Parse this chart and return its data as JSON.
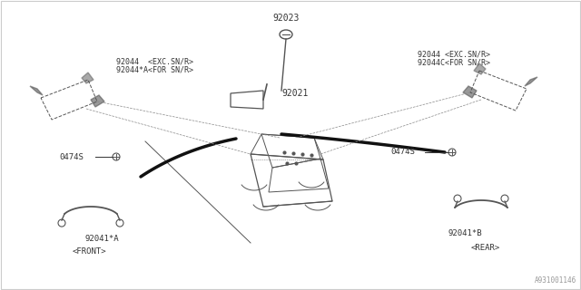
{
  "bg_color": "#ffffff",
  "line_color": "#333333",
  "text_color": "#333333",
  "diagram_id": "A931001146",
  "labels": {
    "front": "<FRONT>",
    "rear": "<REAR>",
    "part_92023": "92023",
    "part_92021": "92021",
    "part_92044_left_1": "92044  <EXC.SN/R>",
    "part_92044_left_2": "92044*A<FOR SN/R>",
    "part_0474S_left": "0474S",
    "part_92044_right_1": "92044 <EXC.SN/R>",
    "part_92044_right_2": "92044C<FOR SN/R>",
    "part_0474S_right": "0474S",
    "part_92041A": "92041*A",
    "part_92041B": "92041*B"
  }
}
